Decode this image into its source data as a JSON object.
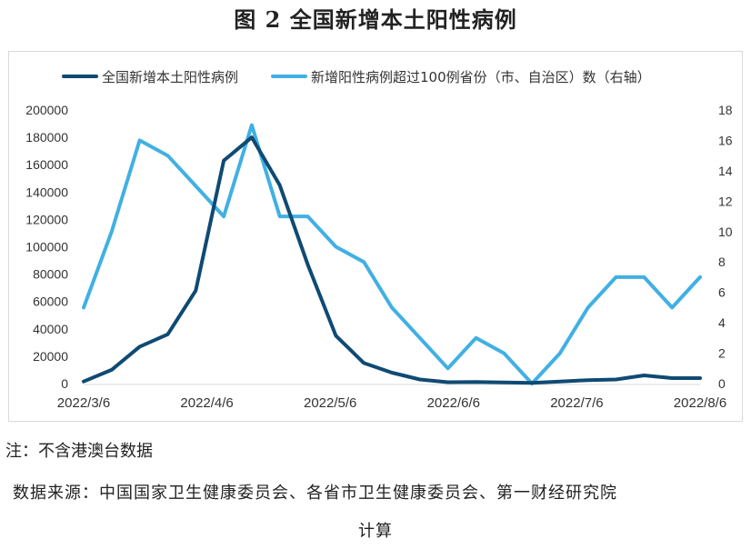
{
  "page": {
    "title": "图 2  全国新增本土阳性病例",
    "note": "注：不含港澳台数据",
    "source_line1": "数据来源：中国国家卫生健康委员会、各省市卫生健康委员会、第一财经研究院",
    "source_line2": "计算"
  },
  "chart_data": {
    "type": "line",
    "legend_position": "top",
    "grid": false,
    "x_tick_labels": [
      "2022/3/6",
      "2022/4/6",
      "2022/5/6",
      "2022/6/6",
      "2022/7/6",
      "2022/8/6"
    ],
    "y_left": {
      "lim": [
        0,
        200000
      ],
      "ticks": [
        "0",
        "20000",
        "40000",
        "60000",
        "80000",
        "100000",
        "120000",
        "140000",
        "160000",
        "180000",
        "200000"
      ]
    },
    "y_right": {
      "lim": [
        0,
        18
      ],
      "ticks": [
        "0",
        "2",
        "4",
        "6",
        "8",
        "10",
        "12",
        "14",
        "16",
        "18"
      ]
    },
    "series": [
      {
        "name": "全国新增本土阳性病例",
        "axis": "left",
        "color": "#0f4a73",
        "values": [
          1500,
          10000,
          27000,
          36000,
          68000,
          163000,
          180000,
          145000,
          87000,
          35000,
          15000,
          8000,
          3000,
          1000,
          1200,
          800,
          500,
          1500,
          2500,
          3000,
          6000,
          4000,
          4000
        ]
      },
      {
        "name": "新增阳性病例超过100例省份（市、自治区）数（右轴）",
        "axis": "right",
        "color": "#41b0e2",
        "values": [
          5,
          10,
          16,
          15,
          13,
          11,
          17,
          11,
          11,
          9,
          8,
          5,
          3,
          1,
          3,
          2,
          0,
          2,
          5,
          7,
          7,
          5,
          7
        ]
      }
    ]
  }
}
